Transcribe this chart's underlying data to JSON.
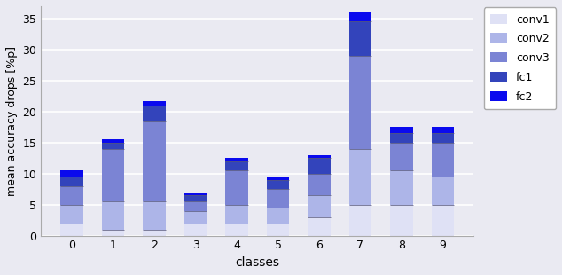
{
  "classes": [
    0,
    1,
    2,
    3,
    4,
    5,
    6,
    7,
    8,
    9
  ],
  "layers": [
    "conv1",
    "conv2",
    "conv3",
    "fc1",
    "fc2"
  ],
  "colors": [
    "#dfe1f5",
    "#adb5e8",
    "#7b84d4",
    "#3344bb",
    "#0a0aee"
  ],
  "values": {
    "conv1": [
      2.0,
      1.0,
      1.0,
      2.0,
      2.0,
      2.0,
      3.0,
      5.0,
      5.0,
      5.0
    ],
    "conv2": [
      3.0,
      4.5,
      4.5,
      2.0,
      3.0,
      2.5,
      3.5,
      9.0,
      5.5,
      4.5
    ],
    "conv3": [
      3.0,
      8.5,
      13.0,
      1.5,
      5.5,
      3.0,
      3.5,
      15.0,
      4.5,
      5.5
    ],
    "fc1": [
      1.5,
      1.0,
      2.5,
      1.0,
      1.5,
      1.5,
      2.5,
      5.5,
      1.5,
      1.5
    ],
    "fc2": [
      1.0,
      0.5,
      0.7,
      0.5,
      0.5,
      0.5,
      0.5,
      1.5,
      1.0,
      1.0
    ]
  },
  "ylabel": "mean accuracy drops [%p]",
  "xlabel": "classes",
  "ylim": [
    0,
    37
  ],
  "yticks": [
    0,
    5,
    10,
    15,
    20,
    25,
    30,
    35
  ],
  "background_color": "#eaeaf2",
  "grid_color": "#ffffff",
  "edgecolor": "none",
  "figsize": [
    6.34,
    3.1
  ],
  "dpi": 100
}
